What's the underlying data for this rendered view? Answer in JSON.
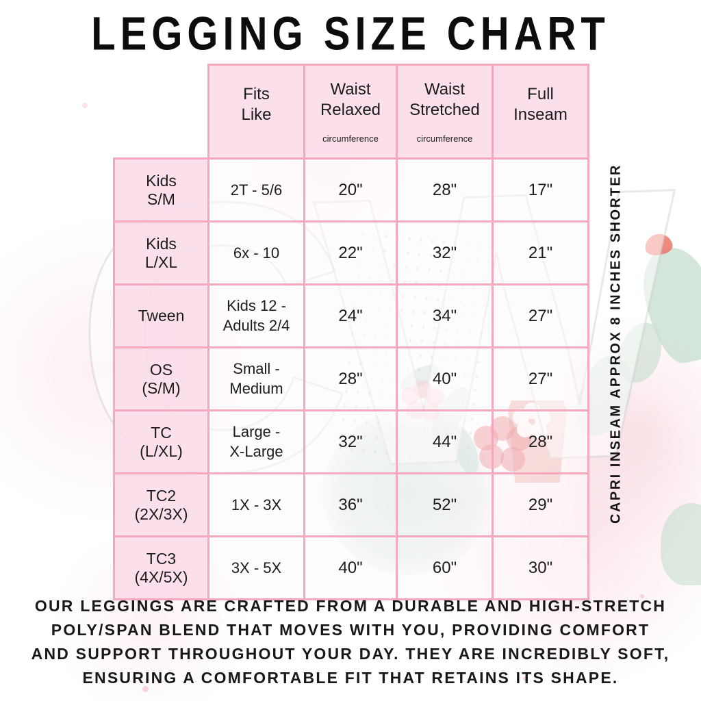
{
  "title": "LEGGING SIZE CHART",
  "watermark": "CW",
  "side_note": "CAPRI INSEAM APPROX 8 INCHES SHORTER",
  "description": {
    "lines": [
      "OUR LEGGINGS ARE CRAFTED FROM A DURABLE AND HIGH-STRETCH",
      "POLY/SPAN BLEND THAT MOVES WITH YOU, PROVIDING COMFORT",
      "AND SUPPORT THROUGHOUT YOUR DAY. THEY ARE INCREDIBLY SOFT,",
      "ENSURING A COMFORTABLE FIT THAT RETAINS ITS SHAPE."
    ]
  },
  "colors": {
    "table_border": "#f5a9bf",
    "header_fill": "#fbdce9",
    "text": "#1c1c1c"
  },
  "chart_data": {
    "type": "table",
    "title": "LEGGING SIZE CHART",
    "columns": [
      {
        "label": "Fits\nLike",
        "sub": ""
      },
      {
        "label": "Waist\nRelaxed",
        "sub": "circumference"
      },
      {
        "label": "Waist\nStretched",
        "sub": "circumference"
      },
      {
        "label": "Full\nInseam",
        "sub": ""
      }
    ],
    "rows": [
      {
        "size_label": "Kids\nS/M",
        "fits_like": "2T - 5/6",
        "waist_relaxed": "20\"",
        "waist_stretched": "28\"",
        "full_inseam": "17\""
      },
      {
        "size_label": "Kids\nL/XL",
        "fits_like": "6x - 10",
        "waist_relaxed": "22\"",
        "waist_stretched": "32\"",
        "full_inseam": "21\""
      },
      {
        "size_label": "Tween",
        "fits_like": "Kids 12 -\nAdults 2/4",
        "waist_relaxed": "24\"",
        "waist_stretched": "34\"",
        "full_inseam": "27\""
      },
      {
        "size_label": "OS\n(S/M)",
        "fits_like": "Small -\nMedium",
        "waist_relaxed": "28\"",
        "waist_stretched": "40\"",
        "full_inseam": "27\""
      },
      {
        "size_label": "TC\n(L/XL)",
        "fits_like": "Large -\nX-Large",
        "waist_relaxed": "32\"",
        "waist_stretched": "44\"",
        "full_inseam": "28\""
      },
      {
        "size_label": "TC2\n(2X/3X)",
        "fits_like": "1X - 3X",
        "waist_relaxed": "36\"",
        "waist_stretched": "52\"",
        "full_inseam": "29\""
      },
      {
        "size_label": "TC3\n(4X/5X)",
        "fits_like": "3X - 5X",
        "waist_relaxed": "40\"",
        "waist_stretched": "60\"",
        "full_inseam": "30\""
      }
    ]
  }
}
